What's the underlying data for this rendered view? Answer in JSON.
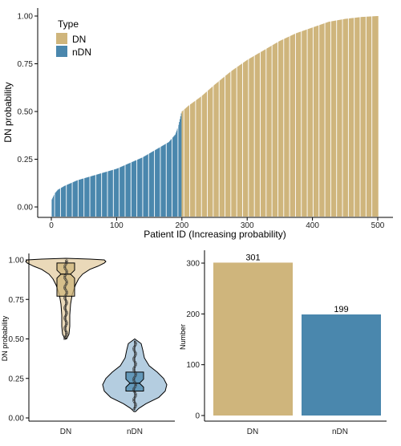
{
  "colors": {
    "DN": "#cfb57c",
    "nDN": "#4a87ad",
    "DN_light": "#ead9b9",
    "nDN_light": "#b4cde0"
  },
  "chart_data": [
    {
      "type": "bar",
      "ylabel": "DN probability",
      "xlabel": "Patient ID (Increasing probability)",
      "xlim": [
        0,
        500
      ],
      "ylim": [
        0,
        1
      ],
      "xticks": [
        "0",
        "100",
        "200",
        "300",
        "400",
        "500"
      ],
      "yticks": [
        "0.00",
        "0.25",
        "0.50",
        "0.75",
        "1.00"
      ],
      "legend": {
        "title": "Type",
        "position": "top-left",
        "items": [
          "DN",
          "nDN"
        ]
      },
      "series": [
        {
          "name": "nDN",
          "x_range": [
            1,
            199
          ],
          "curve": [
            [
              1,
              0.04
            ],
            [
              5,
              0.07
            ],
            [
              10,
              0.09
            ],
            [
              20,
              0.11
            ],
            [
              40,
              0.14
            ],
            [
              60,
              0.16
            ],
            [
              80,
              0.18
            ],
            [
              100,
              0.2
            ],
            [
              120,
              0.23
            ],
            [
              140,
              0.26
            ],
            [
              160,
              0.3
            ],
            [
              180,
              0.34
            ],
            [
              190,
              0.38
            ],
            [
              195,
              0.43
            ],
            [
              199,
              0.49
            ]
          ]
        },
        {
          "name": "DN",
          "x_range": [
            200,
            500
          ],
          "curve": [
            [
              200,
              0.5
            ],
            [
              210,
              0.53
            ],
            [
              230,
              0.58
            ],
            [
              250,
              0.64
            ],
            [
              275,
              0.71
            ],
            [
              300,
              0.77
            ],
            [
              325,
              0.82
            ],
            [
              350,
              0.87
            ],
            [
              375,
              0.91
            ],
            [
              400,
              0.94
            ],
            [
              425,
              0.97
            ],
            [
              450,
              0.985
            ],
            [
              475,
              0.995
            ],
            [
              500,
              1.0
            ]
          ]
        }
      ]
    },
    {
      "type": "violin",
      "ylabel": "DN probability",
      "categories": [
        "DN",
        "nDN"
      ],
      "ylim": [
        0,
        1
      ],
      "yticks": [
        "0.00",
        "0.25",
        "0.50",
        "0.75",
        "1.00"
      ],
      "boxes": [
        {
          "name": "DN",
          "min": 0.5,
          "q1": 0.77,
          "median": 0.91,
          "q3": 0.98,
          "max": 1.0
        },
        {
          "name": "nDN",
          "min": 0.05,
          "q1": 0.17,
          "median": 0.22,
          "q3": 0.29,
          "max": 0.49
        }
      ]
    },
    {
      "type": "bar",
      "ylabel": "Number",
      "categories": [
        "DN",
        "nDN"
      ],
      "values": [
        301,
        199
      ],
      "value_labels": [
        "301",
        "199"
      ],
      "ylim": [
        0,
        310
      ],
      "yticks": [
        "0",
        "100",
        "200",
        "300"
      ]
    }
  ]
}
